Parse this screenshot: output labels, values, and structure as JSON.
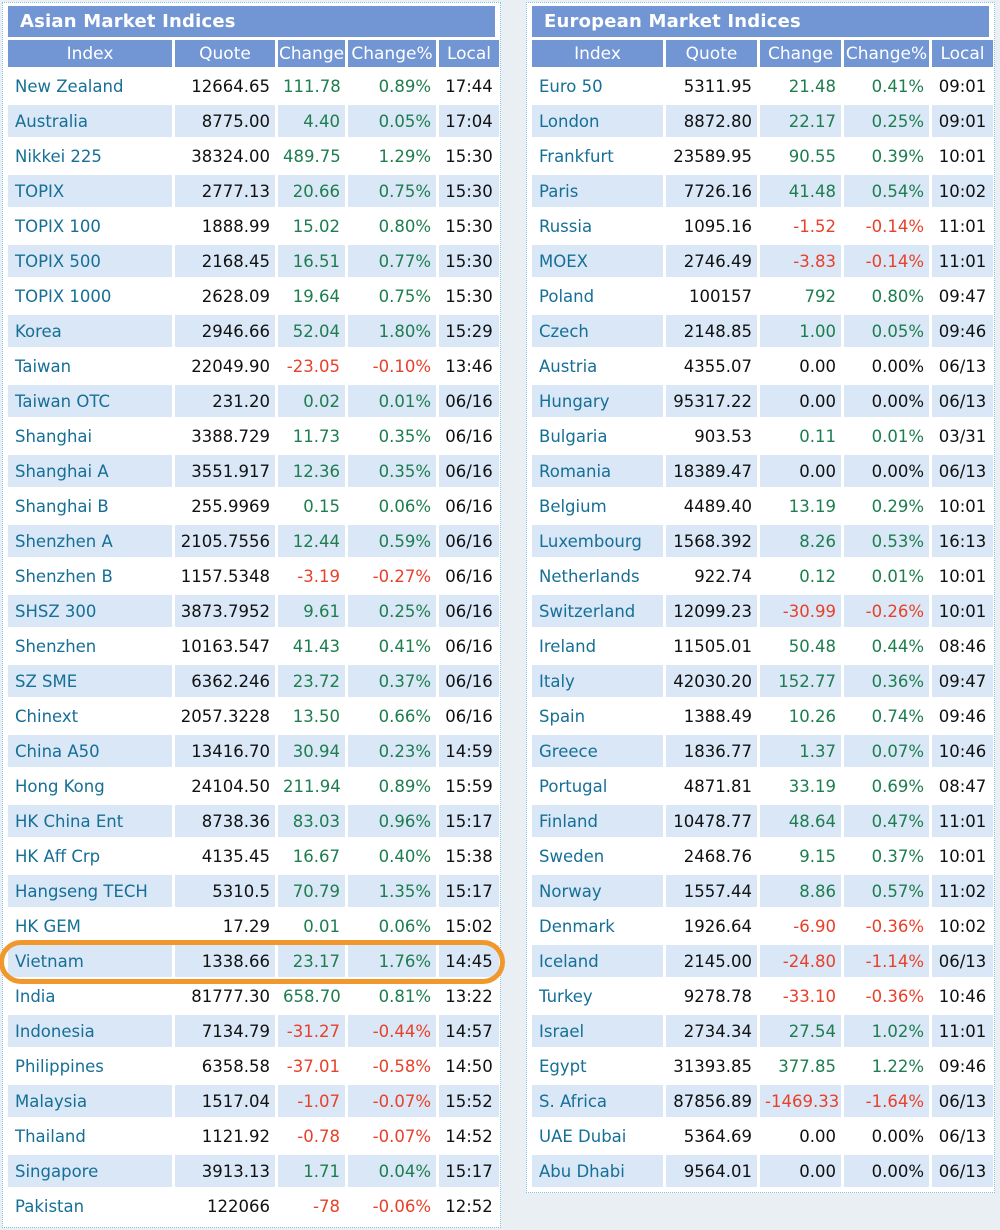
{
  "colors": {
    "page_bg": "#eaeff4",
    "header_bg": "#7296d4",
    "stripe_bg": "#d9e7f6",
    "row_bg": "#ffffff",
    "index_link": "#166f96",
    "positive": "#1e7d4f",
    "negative": "#e8402a",
    "neutral": "#111111",
    "border_dotted": "#7fc0df",
    "highlight_ring": "#f0982b"
  },
  "highlight": {
    "table": "asian",
    "index": "Vietnam"
  },
  "asian": {
    "title": "Asian Market Indices",
    "columns": [
      "Index",
      "Quote",
      "Change",
      "Change%",
      "Local"
    ],
    "rows": [
      [
        "New Zealand",
        "12664.65",
        "111.78",
        "0.89%",
        "17:44"
      ],
      [
        "Australia",
        "8775.00",
        "4.40",
        "0.05%",
        "17:04"
      ],
      [
        "Nikkei 225",
        "38324.00",
        "489.75",
        "1.29%",
        "15:30"
      ],
      [
        "TOPIX",
        "2777.13",
        "20.66",
        "0.75%",
        "15:30"
      ],
      [
        "TOPIX 100",
        "1888.99",
        "15.02",
        "0.80%",
        "15:30"
      ],
      [
        "TOPIX 500",
        "2168.45",
        "16.51",
        "0.77%",
        "15:30"
      ],
      [
        "TOPIX 1000",
        "2628.09",
        "19.64",
        "0.75%",
        "15:30"
      ],
      [
        "Korea",
        "2946.66",
        "52.04",
        "1.80%",
        "15:29"
      ],
      [
        "Taiwan",
        "22049.90",
        "-23.05",
        "-0.10%",
        "13:46"
      ],
      [
        "Taiwan OTC",
        "231.20",
        "0.02",
        "0.01%",
        "06/16"
      ],
      [
        "Shanghai",
        "3388.729",
        "11.73",
        "0.35%",
        "06/16"
      ],
      [
        "Shanghai A",
        "3551.917",
        "12.36",
        "0.35%",
        "06/16"
      ],
      [
        "Shanghai B",
        "255.9969",
        "0.15",
        "0.06%",
        "06/16"
      ],
      [
        "Shenzhen A",
        "2105.7556",
        "12.44",
        "0.59%",
        "06/16"
      ],
      [
        "Shenzhen B",
        "1157.5348",
        "-3.19",
        "-0.27%",
        "06/16"
      ],
      [
        "SHSZ 300",
        "3873.7952",
        "9.61",
        "0.25%",
        "06/16"
      ],
      [
        "Shenzhen",
        "10163.547",
        "41.43",
        "0.41%",
        "06/16"
      ],
      [
        "SZ SME",
        "6362.246",
        "23.72",
        "0.37%",
        "06/16"
      ],
      [
        "Chinext",
        "2057.3228",
        "13.50",
        "0.66%",
        "06/16"
      ],
      [
        "China A50",
        "13416.70",
        "30.94",
        "0.23%",
        "14:59"
      ],
      [
        "Hong Kong",
        "24104.50",
        "211.94",
        "0.89%",
        "15:59"
      ],
      [
        "HK China Ent",
        "8738.36",
        "83.03",
        "0.96%",
        "15:17"
      ],
      [
        "HK Aff Crp",
        "4135.45",
        "16.67",
        "0.40%",
        "15:38"
      ],
      [
        "Hangseng TECH",
        "5310.5",
        "70.79",
        "1.35%",
        "15:17"
      ],
      [
        "HK GEM",
        "17.29",
        "0.01",
        "0.06%",
        "15:02"
      ],
      [
        "Vietnam",
        "1338.66",
        "23.17",
        "1.76%",
        "14:45"
      ],
      [
        "India",
        "81777.30",
        "658.70",
        "0.81%",
        "13:22"
      ],
      [
        "Indonesia",
        "7134.79",
        "-31.27",
        "-0.44%",
        "14:57"
      ],
      [
        "Philippines",
        "6358.58",
        "-37.01",
        "-0.58%",
        "14:50"
      ],
      [
        "Malaysia",
        "1517.04",
        "-1.07",
        "-0.07%",
        "15:52"
      ],
      [
        "Thailand",
        "1121.92",
        "-0.78",
        "-0.07%",
        "14:52"
      ],
      [
        "Singapore",
        "3913.13",
        "1.71",
        "0.04%",
        "15:17"
      ],
      [
        "Pakistan",
        "122066",
        "-78",
        "-0.06%",
        "12:52"
      ]
    ]
  },
  "european": {
    "title": "European Market Indices",
    "columns": [
      "Index",
      "Quote",
      "Change",
      "Change%",
      "Local"
    ],
    "rows": [
      [
        "Euro 50",
        "5311.95",
        "21.48",
        "0.41%",
        "09:01"
      ],
      [
        "London",
        "8872.80",
        "22.17",
        "0.25%",
        "09:01"
      ],
      [
        "Frankfurt",
        "23589.95",
        "90.55",
        "0.39%",
        "10:01"
      ],
      [
        "Paris",
        "7726.16",
        "41.48",
        "0.54%",
        "10:02"
      ],
      [
        "Russia",
        "1095.16",
        "-1.52",
        "-0.14%",
        "11:01"
      ],
      [
        "MOEX",
        "2746.49",
        "-3.83",
        "-0.14%",
        "11:01"
      ],
      [
        "Poland",
        "100157",
        "792",
        "0.80%",
        "09:47"
      ],
      [
        "Czech",
        "2148.85",
        "1.00",
        "0.05%",
        "09:46"
      ],
      [
        "Austria",
        "4355.07",
        "0.00",
        "0.00%",
        "06/13"
      ],
      [
        "Hungary",
        "95317.22",
        "0.00",
        "0.00%",
        "06/13"
      ],
      [
        "Bulgaria",
        "903.53",
        "0.11",
        "0.01%",
        "03/31"
      ],
      [
        "Romania",
        "18389.47",
        "0.00",
        "0.00%",
        "06/13"
      ],
      [
        "Belgium",
        "4489.40",
        "13.19",
        "0.29%",
        "10:01"
      ],
      [
        "Luxembourg",
        "1568.392",
        "8.26",
        "0.53%",
        "16:13"
      ],
      [
        "Netherlands",
        "922.74",
        "0.12",
        "0.01%",
        "10:01"
      ],
      [
        "Switzerland",
        "12099.23",
        "-30.99",
        "-0.26%",
        "10:01"
      ],
      [
        "Ireland",
        "11505.01",
        "50.48",
        "0.44%",
        "08:46"
      ],
      [
        "Italy",
        "42030.20",
        "152.77",
        "0.36%",
        "09:47"
      ],
      [
        "Spain",
        "1388.49",
        "10.26",
        "0.74%",
        "09:46"
      ],
      [
        "Greece",
        "1836.77",
        "1.37",
        "0.07%",
        "10:46"
      ],
      [
        "Portugal",
        "4871.81",
        "33.19",
        "0.69%",
        "08:47"
      ],
      [
        "Finland",
        "10478.77",
        "48.64",
        "0.47%",
        "11:01"
      ],
      [
        "Sweden",
        "2468.76",
        "9.15",
        "0.37%",
        "10:01"
      ],
      [
        "Norway",
        "1557.44",
        "8.86",
        "0.57%",
        "11:02"
      ],
      [
        "Denmark",
        "1926.64",
        "-6.90",
        "-0.36%",
        "10:02"
      ],
      [
        "Iceland",
        "2145.00",
        "-24.80",
        "-1.14%",
        "06/13"
      ],
      [
        "Turkey",
        "9278.78",
        "-33.10",
        "-0.36%",
        "10:46"
      ],
      [
        "Israel",
        "2734.34",
        "27.54",
        "1.02%",
        "11:01"
      ],
      [
        "Egypt",
        "31393.85",
        "377.85",
        "1.22%",
        "09:46"
      ],
      [
        "S. Africa",
        "87856.89",
        "-1469.33",
        "-1.64%",
        "06/13"
      ],
      [
        "UAE Dubai",
        "5364.69",
        "0.00",
        "0.00%",
        "06/13"
      ],
      [
        "Abu Dhabi",
        "9564.01",
        "0.00",
        "0.00%",
        "06/13"
      ]
    ]
  }
}
